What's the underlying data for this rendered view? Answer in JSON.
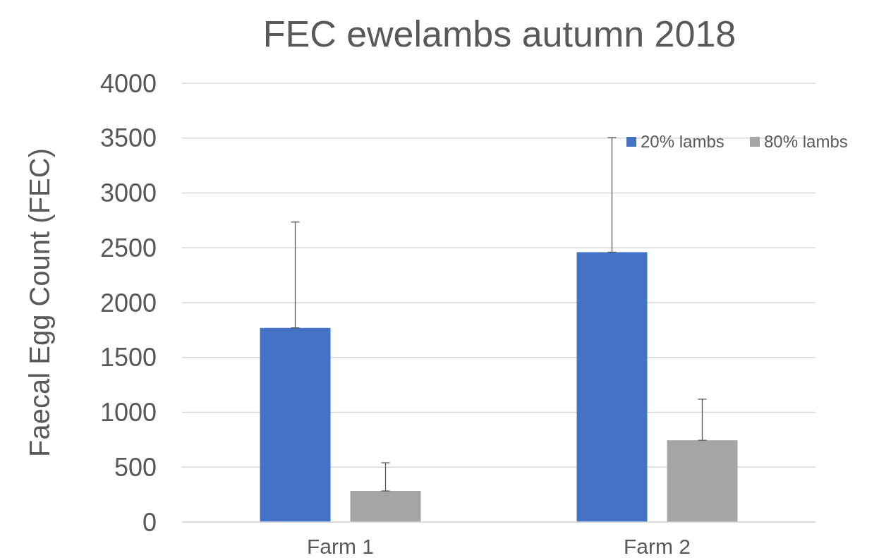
{
  "chart_data": {
    "type": "bar",
    "title": "FEC ewelambs autumn 2018",
    "ylabel": "Faecal Egg Count (FEC)",
    "categories": [
      "Farm 1",
      "Farm 2"
    ],
    "series": [
      {
        "name": "20% lambs",
        "color": "#4472c4",
        "values": [
          1770,
          2460
        ],
        "errors": [
          [
            1770,
            2735
          ],
          [
            2460,
            3505
          ]
        ]
      },
      {
        "name": "80% lambs",
        "color": "#a5a5a5",
        "values": [
          283,
          745
        ],
        "errors": [
          [
            283,
            540
          ],
          [
            745,
            1120
          ]
        ]
      }
    ],
    "ylim": [
      0,
      4000
    ],
    "yticks": [
      0,
      500,
      1000,
      1500,
      2000,
      2500,
      3000,
      3500,
      4000
    ],
    "grid": "y",
    "legend": "top right"
  }
}
